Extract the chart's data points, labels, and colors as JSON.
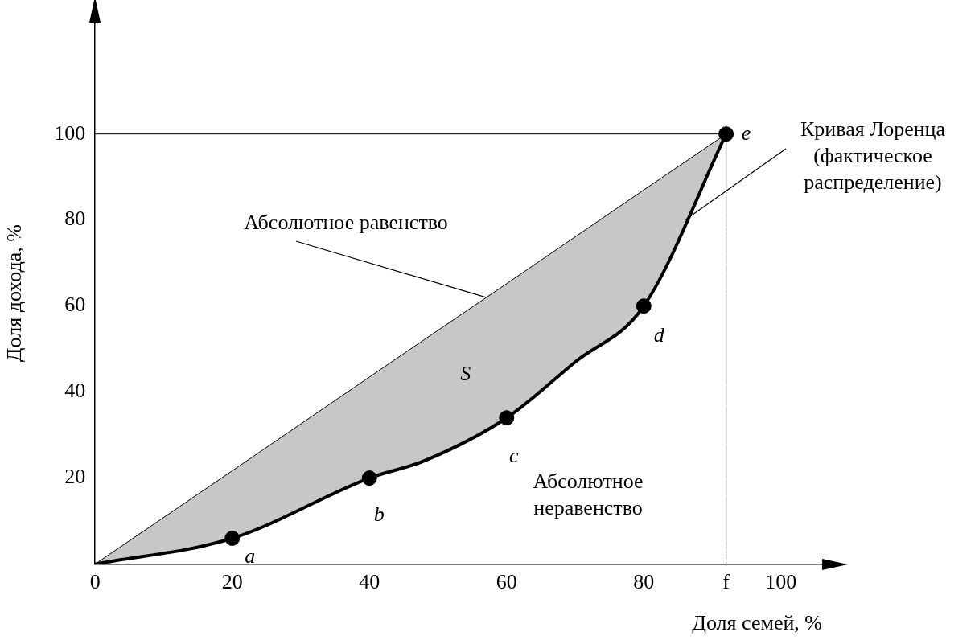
{
  "chart_data": {
    "type": "line",
    "xlabel": "Доля семей, %",
    "ylabel": "Доля дохода, %",
    "xlim": [
      0,
      106
    ],
    "ylim": [
      0,
      126
    ],
    "xticks": [
      0,
      20,
      40,
      60,
      80,
      {
        "value": 92,
        "label": "f"
      },
      100
    ],
    "yticks": [
      20,
      40,
      60,
      80,
      100
    ],
    "grid": false,
    "legend": false,
    "series": [
      {
        "type": "line",
        "color": "#000000",
        "x": [
          0,
          92
        ],
        "values": [
          100,
          100
        ],
        "marker": "none"
      },
      {
        "type": "line",
        "color": "#000000",
        "x": [
          92,
          92
        ],
        "values": [
          0,
          102
        ],
        "marker": "none"
      },
      {
        "type": "line",
        "color": "#000000",
        "x": [
          0,
          20,
          40,
          48,
          60,
          70,
          80,
          92
        ],
        "values": [
          0,
          21.7,
          43.5,
          52.2,
          65.2,
          76.1,
          87,
          100
        ],
        "lower": [
          0,
          6,
          20,
          24,
          34,
          47,
          60,
          100
        ],
        "upper": [
          0,
          21.7,
          43.5,
          52.2,
          65.2,
          76.1,
          87,
          100
        ],
        "marker": "none"
      },
      {
        "type": "line",
        "color": "#000000",
        "x": [
          0,
          20,
          40,
          48,
          60,
          70,
          80,
          92
        ],
        "values": [
          0,
          6,
          20,
          24,
          34,
          47,
          60,
          100
        ],
        "marker": "none"
      },
      {
        "type": "scatter",
        "color": "#000000",
        "x": [
          20,
          40,
          60,
          80,
          92
        ],
        "values": [
          6,
          20,
          34,
          60,
          100
        ],
        "marker": "circle"
      }
    ],
    "annotations": [
      {
        "text": "Абсолютное равенство",
        "x": 57,
        "y": 62
      },
      {
        "text": "Кривая Лоренца\n(фактическое\nраспределение)",
        "x": 86,
        "y": 80
      },
      {
        "text": "a",
        "x": 20,
        "y": 6
      },
      {
        "text": "b",
        "x": 40,
        "y": 20
      },
      {
        "text": "c",
        "x": 60,
        "y": 34
      },
      {
        "text": "d",
        "x": 80,
        "y": 60
      },
      {
        "text": "e",
        "x": 92,
        "y": 100
      },
      "S",
      "Абсолютное\nнеравенство"
    ]
  }
}
